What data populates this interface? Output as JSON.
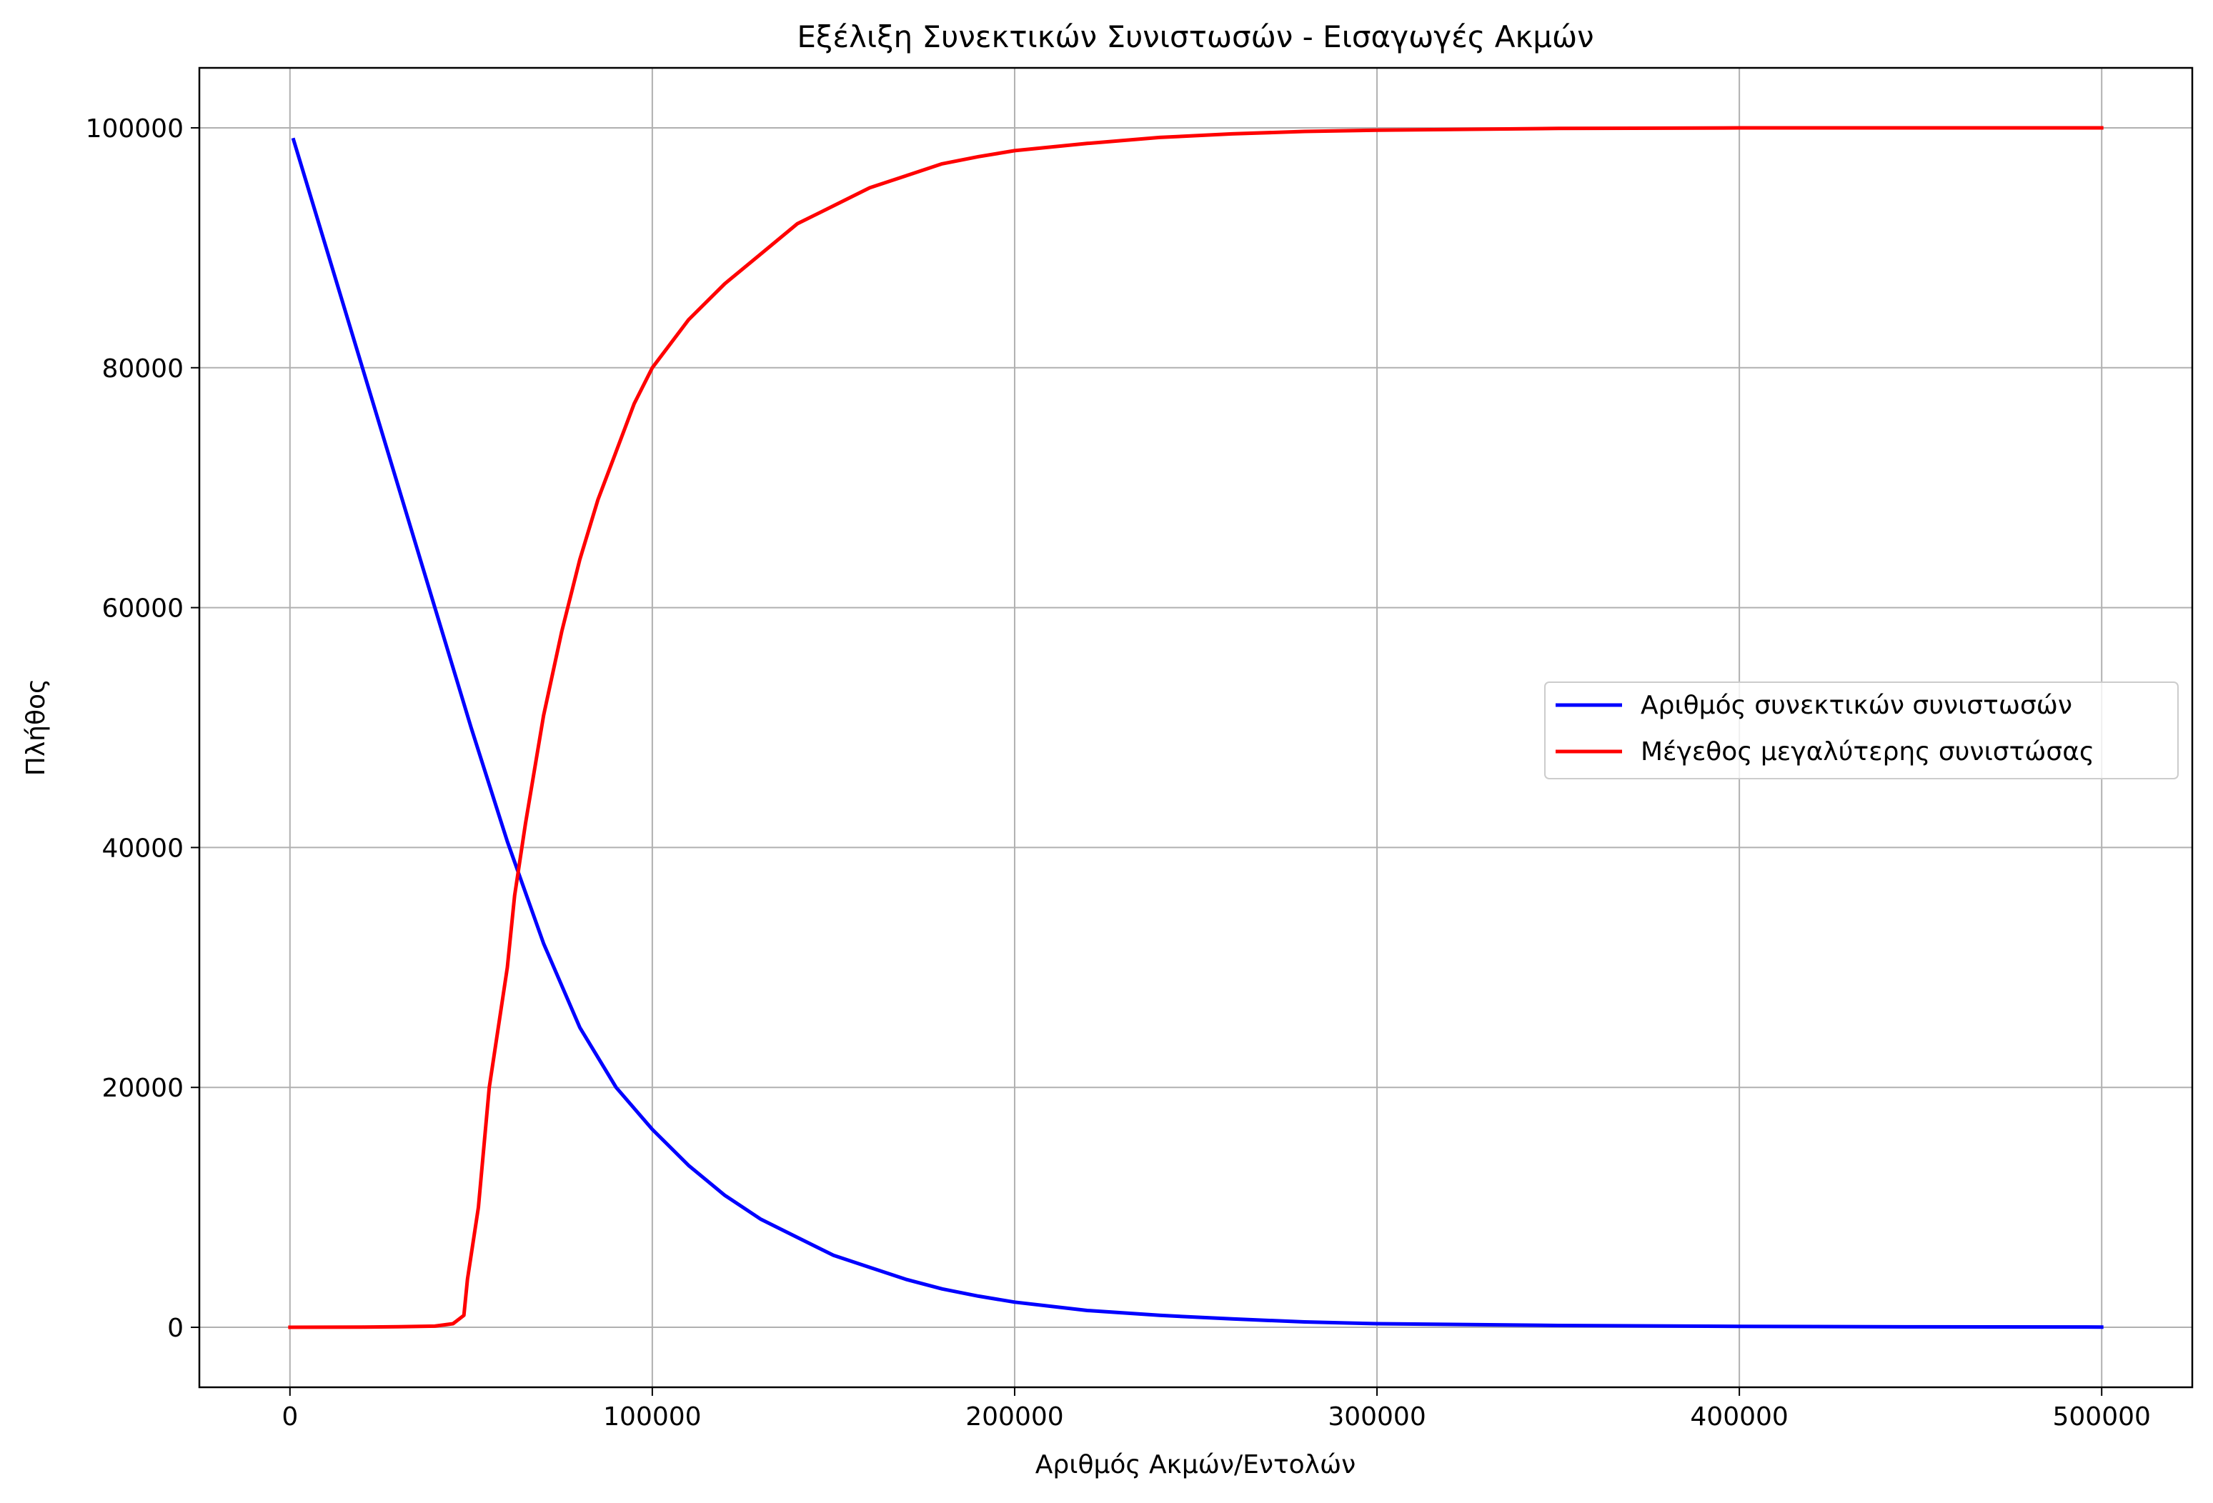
{
  "chart_data": {
    "type": "line",
    "title": "Εξέλιξη Συνεκτικών Συνιστωσών - Εισαγωγές Ακμών",
    "xlabel": "Αριθμός Ακμών/Εντολών",
    "ylabel": "Πλήθος",
    "xlim": [
      -25000,
      525000
    ],
    "ylim": [
      -5000,
      105000
    ],
    "xticks": [
      0,
      100000,
      200000,
      300000,
      400000,
      500000
    ],
    "yticks": [
      0,
      20000,
      40000,
      60000,
      80000,
      100000
    ],
    "xtick_labels": [
      "0",
      "100000",
      "200000",
      "300000",
      "400000",
      "500000"
    ],
    "ytick_labels": [
      "0",
      "20000",
      "40000",
      "60000",
      "80000",
      "100000"
    ],
    "grid": true,
    "legend_position": "center-right",
    "series": [
      {
        "name": "Αριθμός συνεκτικών συνιστωσών",
        "color": "#0000ff",
        "points": [
          [
            1000,
            99000
          ],
          [
            20000,
            80000
          ],
          [
            40000,
            60000
          ],
          [
            50000,
            50000
          ],
          [
            60000,
            40500
          ],
          [
            70000,
            32000
          ],
          [
            80000,
            25000
          ],
          [
            90000,
            20000
          ],
          [
            100000,
            16500
          ],
          [
            110000,
            13500
          ],
          [
            120000,
            11000
          ],
          [
            130000,
            9000
          ],
          [
            140000,
            7500
          ],
          [
            150000,
            6000
          ],
          [
            160000,
            5000
          ],
          [
            170000,
            4000
          ],
          [
            180000,
            3200
          ],
          [
            190000,
            2600
          ],
          [
            200000,
            2100
          ],
          [
            220000,
            1400
          ],
          [
            240000,
            1000
          ],
          [
            260000,
            700
          ],
          [
            280000,
            450
          ],
          [
            300000,
            300
          ],
          [
            350000,
            150
          ],
          [
            400000,
            80
          ],
          [
            450000,
            40
          ],
          [
            500000,
            20
          ]
        ]
      },
      {
        "name": "Μέγεθος μεγαλύτερης συνιστώσας",
        "color": "#ff0000",
        "points": [
          [
            0,
            0
          ],
          [
            20000,
            20
          ],
          [
            30000,
            50
          ],
          [
            40000,
            100
          ],
          [
            45000,
            300
          ],
          [
            48000,
            1000
          ],
          [
            49000,
            4000
          ],
          [
            52000,
            10000
          ],
          [
            55000,
            20000
          ],
          [
            60000,
            30000
          ],
          [
            62000,
            36000
          ],
          [
            65000,
            42000
          ],
          [
            70000,
            51000
          ],
          [
            75000,
            58000
          ],
          [
            80000,
            64000
          ],
          [
            85000,
            69000
          ],
          [
            90000,
            73000
          ],
          [
            95000,
            77000
          ],
          [
            100000,
            80000
          ],
          [
            110000,
            84000
          ],
          [
            120000,
            87000
          ],
          [
            130000,
            89500
          ],
          [
            140000,
            92000
          ],
          [
            150000,
            93500
          ],
          [
            160000,
            95000
          ],
          [
            170000,
            96000
          ],
          [
            180000,
            97000
          ],
          [
            190000,
            97600
          ],
          [
            200000,
            98100
          ],
          [
            220000,
            98700
          ],
          [
            240000,
            99200
          ],
          [
            260000,
            99500
          ],
          [
            280000,
            99700
          ],
          [
            300000,
            99800
          ],
          [
            350000,
            99950
          ],
          [
            400000,
            100000
          ],
          [
            500000,
            100000
          ]
        ]
      }
    ]
  }
}
